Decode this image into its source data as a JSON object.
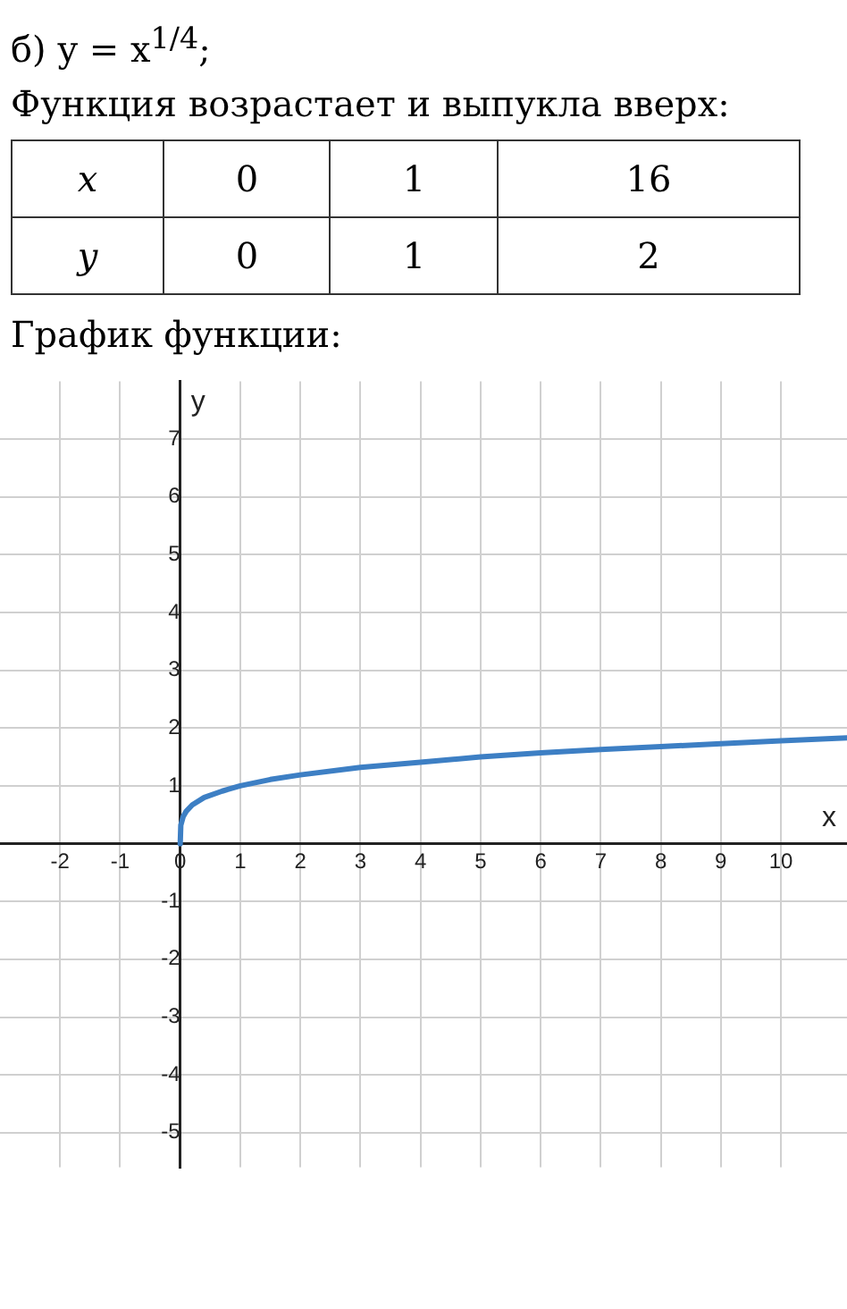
{
  "chart_data": [
    {
      "type": "other",
      "title": "б) y = x$^{1/4}$;",
      "subtitle": "Функция возрастает и выпукла вверх:",
      "annotations": [
        "x",
        "0",
        "1",
        "16",
        "y",
        "0",
        "1",
        "2"
      ]
    },
    {
      "type": "line",
      "title": "График функции:",
      "xlabel": "x",
      "ylabel": "y",
      "xlim": [
        -3,
        11.1
      ],
      "ylim": [
        -5.6,
        8
      ],
      "xticks": [
        -2,
        -1,
        0,
        1,
        2,
        3,
        4,
        5,
        6,
        7,
        8,
        9,
        10
      ],
      "yticks": [
        -5,
        -4,
        -3,
        -2,
        -1,
        1,
        2,
        3,
        4,
        5,
        6,
        7
      ],
      "grid": true,
      "x": [
        0,
        0.01,
        0.05,
        0.1,
        0.2,
        0.4,
        0.7,
        1,
        1.5,
        2,
        3,
        4,
        5,
        6,
        7,
        8,
        9,
        10,
        11.1
      ],
      "series": [
        {
          "color": "#3d7fc4",
          "values": [
            0,
            0.32,
            0.47,
            0.56,
            0.67,
            0.8,
            0.91,
            1,
            1.11,
            1.19,
            1.32,
            1.41,
            1.5,
            1.57,
            1.63,
            1.68,
            1.73,
            1.78,
            1.83
          ]
        }
      ]
    }
  ]
}
